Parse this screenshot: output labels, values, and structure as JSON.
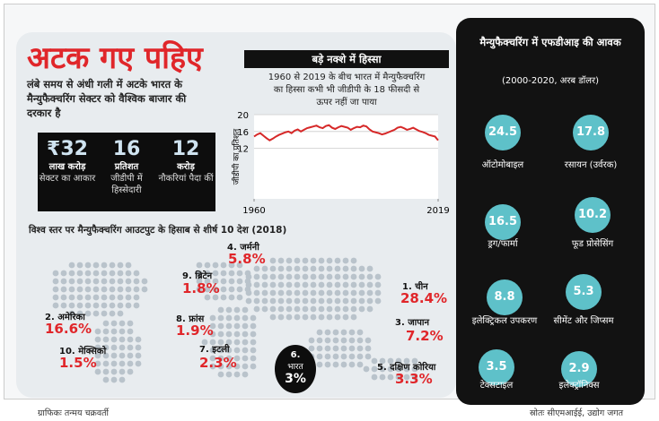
{
  "header": {
    "title": "अटक गए पहिए",
    "subtitle": "लंबे समय से अंधी गली में अटके भारत के मैन्युफैक्चरिंग सेक्टर को वैश्विक बाजार की दरकार है"
  },
  "stats": [
    {
      "value": "₹32",
      "unit": "लाख करोड़",
      "desc": "सेक्टर का आकार"
    },
    {
      "value": "16",
      "unit": "प्रतिशत",
      "desc": "जीडीपी में हिस्सेदारी"
    },
    {
      "value": "12",
      "unit": "करोड़",
      "desc": "नौकरियां पैदा कीं"
    }
  ],
  "chart_data": {
    "type": "line",
    "title": "बड़े नक्शे में हिस्सा",
    "subtitle": "1960 से 2019 के बीच भारत में मैन्युफैक्चरिंग का हिस्सा कभी भी जीडीपी के 18 फीसदी से ऊपर नहीं जा पाया",
    "ylabel": "जीडीपी का प्रतिशत",
    "color": "#d62828",
    "x": [
      1960,
      1961,
      1962,
      1963,
      1964,
      1965,
      1966,
      1967,
      1968,
      1969,
      1970,
      1971,
      1972,
      1973,
      1974,
      1975,
      1976,
      1977,
      1978,
      1979,
      1980,
      1981,
      1982,
      1983,
      1984,
      1985,
      1986,
      1987,
      1988,
      1989,
      1990,
      1991,
      1992,
      1993,
      1994,
      1995,
      1996,
      1997,
      1998,
      1999,
      2000,
      2001,
      2002,
      2003,
      2004,
      2005,
      2006,
      2007,
      2008,
      2009,
      2010,
      2011,
      2012,
      2013,
      2014,
      2015,
      2016,
      2017,
      2018,
      2019
    ],
    "values": [
      14.8,
      15.3,
      15.6,
      15.0,
      14.4,
      13.9,
      14.3,
      14.8,
      15.2,
      15.5,
      15.8,
      16.0,
      15.6,
      16.2,
      16.5,
      16.0,
      16.4,
      16.8,
      17.0,
      17.2,
      17.4,
      17.0,
      16.8,
      17.3,
      17.5,
      16.9,
      16.6,
      17.0,
      17.3,
      17.1,
      16.9,
      16.4,
      16.8,
      17.1,
      17.0,
      17.4,
      17.2,
      16.5,
      16.0,
      15.8,
      15.6,
      15.3,
      15.5,
      15.8,
      16.1,
      16.4,
      16.9,
      17.1,
      16.8,
      16.4,
      16.6,
      16.9,
      16.5,
      16.1,
      15.9,
      15.6,
      15.2,
      15.0,
      14.8,
      13.9
    ],
    "xlim": [
      1960,
      2019
    ],
    "xticks": [
      1960,
      2019
    ],
    "ylim": [
      0,
      20
    ],
    "yticks": [
      12,
      16,
      20
    ],
    "grid": true
  },
  "map": {
    "title": "विश्व स्तर पर मैन्युफैक्चरिंग आउटपुट के हिसाब से शीर्ष 10 देश (2018)",
    "countries": [
      {
        "name": "1. चीन",
        "share": "28.4%"
      },
      {
        "name": "2. अमेरिका",
        "share": "16.6%"
      },
      {
        "name": "3. जापान",
        "share": "7.2%"
      },
      {
        "name": "4. जर्मनी",
        "share": "5.8%"
      },
      {
        "name": "5. दक्षिण कोरिया",
        "share": "3.3%"
      },
      {
        "name": "6.",
        "country": "भारत",
        "share": "3%"
      },
      {
        "name": "7. इटली",
        "share": "2.3%"
      },
      {
        "name": "8. फ्रांस",
        "share": "1.9%"
      },
      {
        "name": "9. ब्रिटेन",
        "share": "1.8%"
      },
      {
        "name": "10. मेक्सिको",
        "share": "1.5%"
      }
    ]
  },
  "fdi": {
    "title": "मैन्युफैक्चरिंग में एफडीआइ की आवक",
    "subtitle": "(2000-2020, अरब डॉलर)",
    "items": [
      {
        "value": "24.5",
        "label": "ऑटोमोबाइल"
      },
      {
        "value": "17.8",
        "label": "रसायन (उर्वरक)"
      },
      {
        "value": "16.5",
        "label": "ड्रग/फार्मा"
      },
      {
        "value": "10.2",
        "label": "फूड प्रोसेसिंग"
      },
      {
        "value": "8.8",
        "label": "इलेक्ट्रिकल उपकरण"
      },
      {
        "value": "5.3",
        "label": "सीमेंट और जिप्सम"
      },
      {
        "value": "3.5",
        "label": "टेक्सटाइल"
      },
      {
        "value": "2.9",
        "label": "इलेक्ट्रॉनिक्स"
      }
    ]
  },
  "footer": {
    "credit": "ग्राफिकः तन्मय चक्रवर्ती",
    "source": "स्रोतः सीएमआईई, उद्योग जगत"
  }
}
